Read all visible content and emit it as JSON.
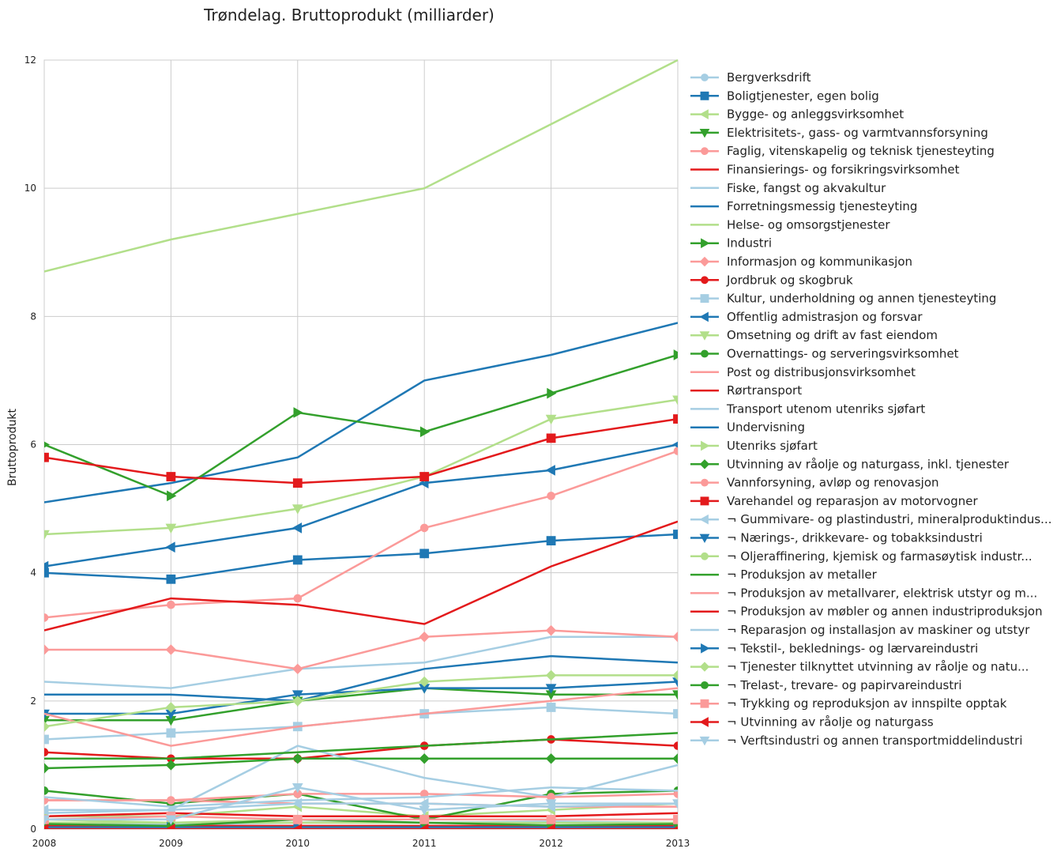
{
  "chart_data": {
    "type": "line",
    "title": "Trøndelag. Bruttoprodukt (milliarder)",
    "xlabel": "",
    "ylabel": "Bruttoprodukt",
    "x": [
      2008,
      2009,
      2010,
      2011,
      2012,
      2013
    ],
    "xlim": [
      2008,
      2013
    ],
    "ylim": [
      0,
      12
    ],
    "yticks": [
      0,
      2,
      4,
      6,
      8,
      10,
      12
    ],
    "grid": true,
    "legend_position": "right",
    "series": [
      {
        "name": "Bergverksdrift",
        "color": "#a6cee3",
        "marker": "circle",
        "values": [
          0.08,
          0.07,
          0.1,
          0.1,
          0.12,
          0.1
        ]
      },
      {
        "name": "Boligtjenester, egen bolig",
        "color": "#1f78b4",
        "marker": "square",
        "values": [
          4.0,
          3.9,
          4.2,
          4.3,
          4.5,
          4.6
        ]
      },
      {
        "name": "Bygge- og anleggsvirksomhet",
        "color": "#b2df8a",
        "marker": "triangle-left",
        "values": [
          0.2,
          0.2,
          0.35,
          0.2,
          0.3,
          0.4
        ]
      },
      {
        "name": "Elektrisitets-, gass- og varmtvannsforsyning",
        "color": "#33a02c",
        "marker": "triangle-down",
        "values": [
          1.7,
          1.7,
          2.0,
          2.2,
          2.1,
          2.1
        ]
      },
      {
        "name": "Faglig, vitenskapelig og teknisk tjenesteyting",
        "color": "#fb9a99",
        "marker": "circle",
        "values": [
          3.3,
          3.5,
          3.6,
          4.7,
          5.2,
          5.9
        ]
      },
      {
        "name": "Finansierings- og forsikringsvirksomhet",
        "color": "#e31a1c",
        "marker": "none",
        "values": [
          3.1,
          3.6,
          3.5,
          3.2,
          4.1,
          4.8
        ]
      },
      {
        "name": "Fiske, fangst og akvakultur",
        "color": "#a6cee3",
        "marker": "none",
        "values": [
          2.3,
          2.2,
          2.5,
          2.6,
          3.0,
          3.0
        ]
      },
      {
        "name": "Forretningsmessig tjenesteyting",
        "color": "#1f78b4",
        "marker": "none",
        "values": [
          5.1,
          5.4,
          5.8,
          7.0,
          7.4,
          7.9
        ]
      },
      {
        "name": "Helse- og omsorgstjenester",
        "color": "#b2df8a",
        "marker": "none",
        "values": [
          8.7,
          9.2,
          9.6,
          10.0,
          11.0,
          12.0
        ]
      },
      {
        "name": "Industri",
        "color": "#33a02c",
        "marker": "triangle-right",
        "values": [
          6.0,
          5.2,
          6.5,
          6.2,
          6.8,
          7.4
        ]
      },
      {
        "name": "Informasjon og kommunikasjon",
        "color": "#fb9a99",
        "marker": "diamond",
        "values": [
          2.8,
          2.8,
          2.5,
          3.0,
          3.1,
          3.0
        ]
      },
      {
        "name": "Jordbruk og skogbruk",
        "color": "#e31a1c",
        "marker": "circle",
        "values": [
          1.2,
          1.1,
          1.1,
          1.3,
          1.4,
          1.3
        ]
      },
      {
        "name": "Kultur, underholdning og annen tjenesteyting",
        "color": "#a6cee3",
        "marker": "square",
        "values": [
          1.4,
          1.5,
          1.6,
          1.8,
          1.9,
          1.8
        ]
      },
      {
        "name": "Offentlig admistrasjon og forsvar",
        "color": "#1f78b4",
        "marker": "triangle-left",
        "values": [
          4.1,
          4.4,
          4.7,
          5.4,
          5.6,
          6.0
        ]
      },
      {
        "name": "Omsetning og drift av fast eiendom",
        "color": "#b2df8a",
        "marker": "triangle-down",
        "values": [
          4.6,
          4.7,
          5.0,
          5.5,
          6.4,
          6.7
        ]
      },
      {
        "name": "Overnattings- og serveringsvirksomhet",
        "color": "#33a02c",
        "marker": "circle",
        "values": [
          0.6,
          0.4,
          0.55,
          0.15,
          0.55,
          0.6
        ]
      },
      {
        "name": "Post og distribusjonsvirksomhet",
        "color": "#fb9a99",
        "marker": "none",
        "values": [
          0.45,
          0.45,
          0.4,
          0.4,
          0.35,
          0.35
        ]
      },
      {
        "name": "Rørtransport",
        "color": "#e31a1c",
        "marker": "none",
        "values": [
          0.05,
          0.05,
          0.05,
          0.05,
          0.05,
          0.05
        ]
      },
      {
        "name": "Transport utenom utenriks sjøfart",
        "color": "#a6cee3",
        "marker": "none",
        "values": [
          0.25,
          0.3,
          1.3,
          0.8,
          0.5,
          1.0
        ]
      },
      {
        "name": "Undervisning",
        "color": "#1f78b4",
        "marker": "none",
        "values": [
          2.1,
          2.1,
          2.0,
          2.5,
          2.7,
          2.6
        ]
      },
      {
        "name": "Utenriks sjøfart",
        "color": "#b2df8a",
        "marker": "triangle-right",
        "values": [
          0.15,
          0.1,
          0.1,
          0.1,
          0.1,
          0.1
        ]
      },
      {
        "name": "Utvinning av råolje og naturgass, inkl. tjenester",
        "color": "#33a02c",
        "marker": "diamond",
        "values": [
          0.95,
          1.0,
          1.1,
          1.1,
          1.1,
          1.1
        ]
      },
      {
        "name": "Vannforsyning, avløp og renovasjon",
        "color": "#fb9a99",
        "marker": "circle",
        "values": [
          0.45,
          0.45,
          0.55,
          0.55,
          0.5,
          0.55
        ]
      },
      {
        "name": "Varehandel og reparasjon av motorvogner",
        "color": "#e31a1c",
        "marker": "square",
        "values": [
          5.8,
          5.5,
          5.4,
          5.5,
          6.1,
          6.4
        ]
      },
      {
        "name": "¬ Gummivare- og plastindustri, mineralproduktindus...",
        "color": "#a6cee3",
        "marker": "triangle-left",
        "values": [
          0.3,
          0.3,
          0.4,
          0.4,
          0.35,
          0.4
        ]
      },
      {
        "name": "¬ Nærings-, drikkevare- og tobakksindustri",
        "color": "#1f78b4",
        "marker": "triangle-down",
        "values": [
          1.8,
          1.8,
          2.1,
          2.2,
          2.2,
          2.3
        ]
      },
      {
        "name": "¬ Oljeraffinering, kjemisk og farmasøytisk industr...",
        "color": "#b2df8a",
        "marker": "circle",
        "values": [
          0.1,
          0.1,
          0.15,
          0.15,
          0.15,
          0.15
        ]
      },
      {
        "name": "¬ Produksjon av metaller",
        "color": "#33a02c",
        "marker": "none",
        "values": [
          1.1,
          1.1,
          1.2,
          1.3,
          1.4,
          1.5
        ]
      },
      {
        "name": "¬ Produksjon av metallvarer, elektrisk utstyr og m...",
        "color": "#fb9a99",
        "marker": "none",
        "values": [
          1.8,
          1.3,
          1.6,
          1.8,
          2.0,
          2.2
        ]
      },
      {
        "name": "¬ Produksjon av møbler og annen industriproduksjon",
        "color": "#e31a1c",
        "marker": "none",
        "values": [
          0.2,
          0.25,
          0.2,
          0.2,
          0.2,
          0.25
        ]
      },
      {
        "name": "¬ Reparasjon og installasjon av maskiner og utstyr",
        "color": "#a6cee3",
        "marker": "none",
        "values": [
          0.5,
          0.35,
          0.45,
          0.5,
          0.65,
          0.6
        ]
      },
      {
        "name": "¬ Tekstil-, beklednings- og lærvareindustri",
        "color": "#1f78b4",
        "marker": "triangle-right",
        "values": [
          0.03,
          0.03,
          0.03,
          0.03,
          0.03,
          0.03
        ]
      },
      {
        "name": "¬ Tjenester tilknyttet utvinning av råolje og natu...",
        "color": "#b2df8a",
        "marker": "diamond",
        "values": [
          1.6,
          1.9,
          2.0,
          2.3,
          2.4,
          2.4
        ]
      },
      {
        "name": "¬ Trelast-, trevare- og papirvareindustri",
        "color": "#33a02c",
        "marker": "circle",
        "values": [
          0.08,
          0.05,
          0.15,
          0.1,
          0.06,
          0.08
        ]
      },
      {
        "name": "¬ Trykking og reproduksjon av innspilte opptak",
        "color": "#fb9a99",
        "marker": "square",
        "values": [
          0.15,
          0.2,
          0.15,
          0.15,
          0.15,
          0.15
        ]
      },
      {
        "name": "¬ Utvinning av råolje og naturgass",
        "color": "#e31a1c",
        "marker": "triangle-left",
        "values": [
          0.0,
          0.0,
          0.0,
          0.0,
          0.0,
          0.0
        ]
      },
      {
        "name": "¬ Verftsindustri og annen transportmiddelindustri",
        "color": "#a6cee3",
        "marker": "triangle-down",
        "values": [
          0.15,
          0.15,
          0.65,
          0.3,
          0.4,
          0.4
        ]
      }
    ]
  }
}
